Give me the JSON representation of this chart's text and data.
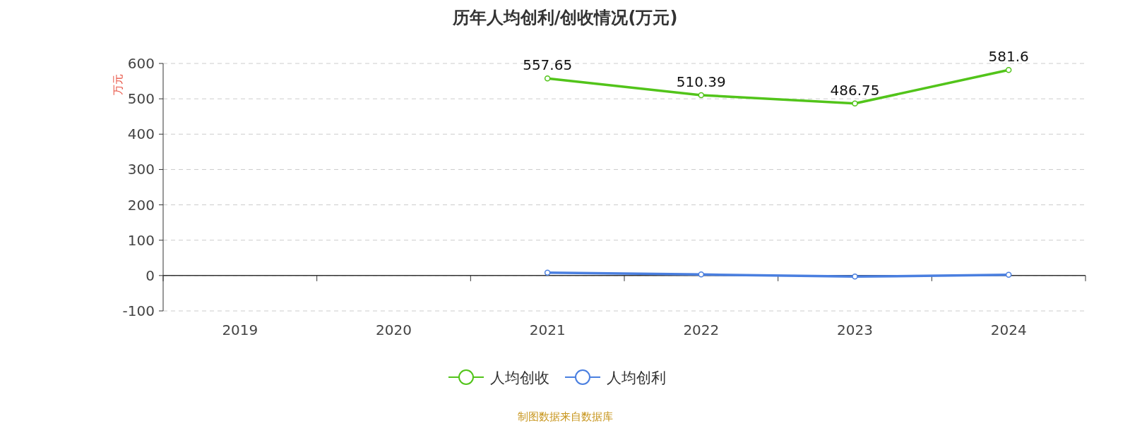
{
  "chart_data": {
    "type": "line",
    "title": "历年人均创利/创收情况(万元)",
    "ylabel": "万元",
    "categories": [
      "2019",
      "2020",
      "2021",
      "2022",
      "2023",
      "2024"
    ],
    "series": [
      {
        "name": "人均创收",
        "color": "#52c41a",
        "values": [
          null,
          null,
          557.65,
          510.39,
          486.75,
          581.6
        ],
        "value_labels": [
          null,
          null,
          "557.65",
          "510.39",
          "486.75",
          "581.6"
        ]
      },
      {
        "name": "人均创利",
        "color": "#4a7fe0",
        "values": [
          null,
          null,
          8,
          3,
          -3,
          2
        ]
      }
    ],
    "ylim": [
      -100,
      600
    ],
    "yticks": [
      -100,
      0,
      100,
      200,
      300,
      400,
      500,
      600
    ],
    "grid": "y",
    "legend": "bottom",
    "marker": "circle",
    "line_style": "solid",
    "annotations": [
      "制图数据来自数据库"
    ]
  }
}
